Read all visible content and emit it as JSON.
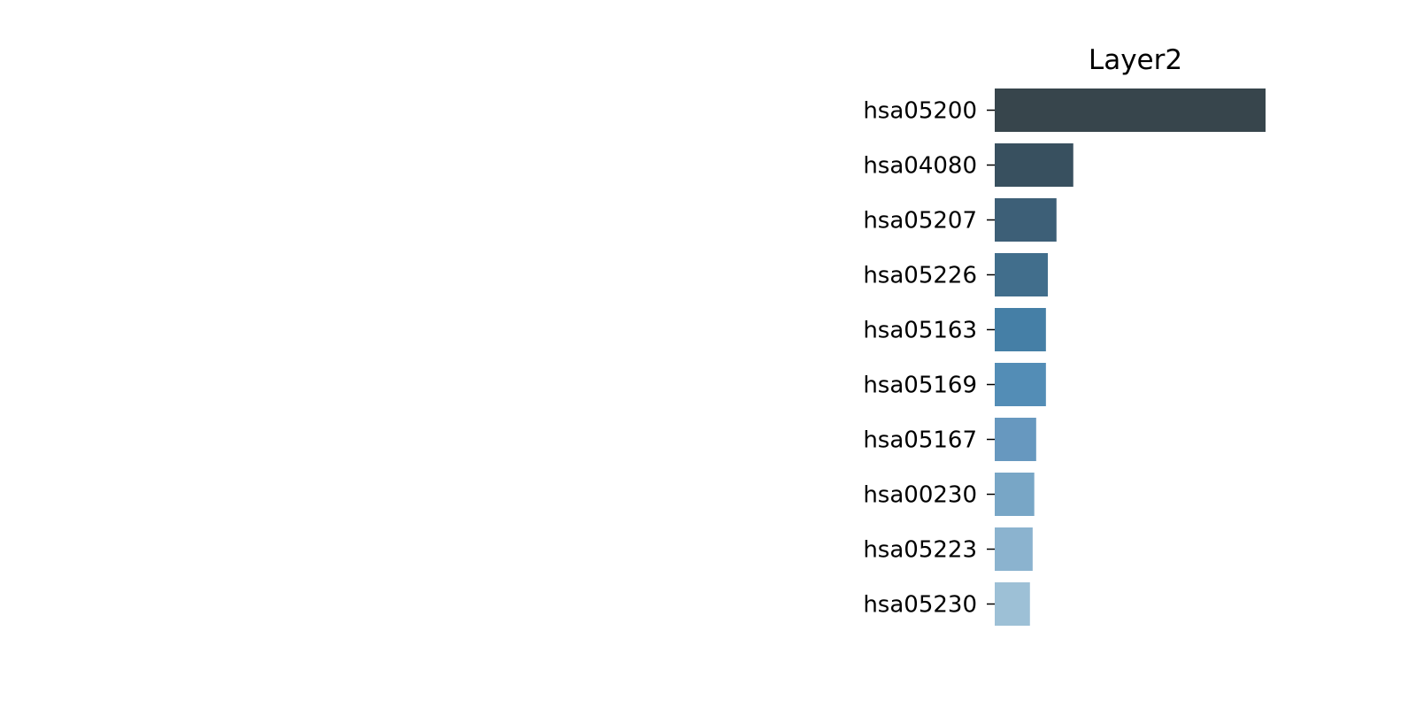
{
  "chart_data": {
    "type": "bar",
    "orientation": "horizontal",
    "title": "Layer2",
    "xlabel": "",
    "ylabel": "",
    "categories": [
      "hsa05200",
      "hsa04080",
      "hsa05207",
      "hsa05226",
      "hsa05163",
      "hsa05169",
      "hsa05167",
      "hsa00230",
      "hsa05223",
      "hsa05230"
    ],
    "values": [
      1.0,
      0.29,
      0.228,
      0.196,
      0.189,
      0.189,
      0.153,
      0.146,
      0.14,
      0.13
    ],
    "colors": [
      "#37454c",
      "#38505f",
      "#3d5f77",
      "#416e8c",
      "#457fa6",
      "#538db6",
      "#6798bf",
      "#78a6c6",
      "#8bb3cf",
      "#9dc0d6"
    ],
    "xlim": [
      0,
      1.0
    ],
    "grid": false,
    "legend": false
  }
}
